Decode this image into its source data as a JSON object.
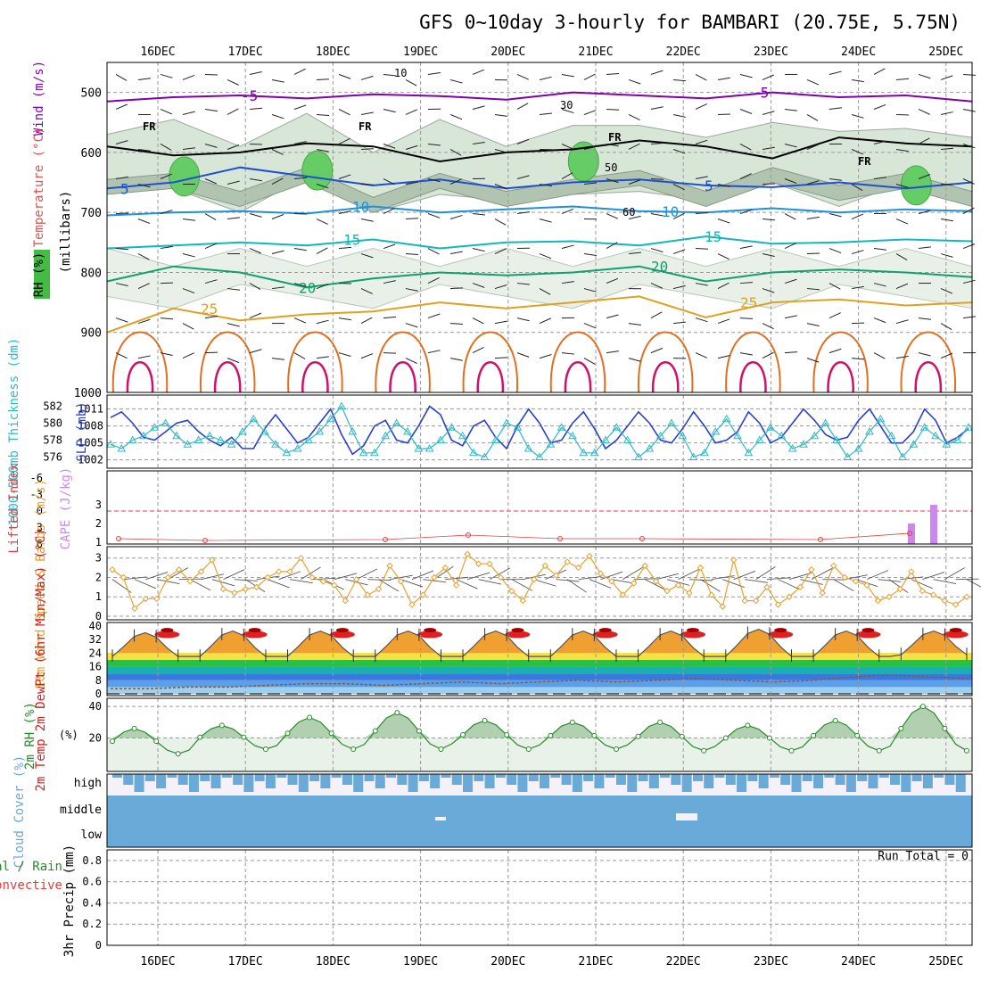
{
  "chart_data": [
    {
      "panel": "upper-air",
      "type": "contour",
      "title": "GFS 0~10day 3-hourly for BAMBARI (20.75E, 5.75N)",
      "dates": [
        "16DEC",
        "17DEC",
        "18DEC",
        "19DEC",
        "20DEC",
        "21DEC",
        "22DEC",
        "23DEC",
        "24DEC",
        "25DEC"
      ],
      "ylabel": "(millibars)",
      "legend_labels": [
        "Wind (m/s)",
        "Temperature (°C)",
        "RH (%)"
      ],
      "pressure_ticks": [
        500,
        600,
        700,
        800,
        900,
        1000
      ],
      "ylim": [
        450,
        1000
      ],
      "freezing_label": "FR",
      "temperature_isotherms": [
        {
          "label": "-5",
          "color": "#8000b0",
          "levels": [
            515,
            508,
            505,
            510,
            503,
            506,
            512,
            500,
            505,
            510,
            500,
            508,
            505,
            515
          ]
        },
        {
          "label": "5",
          "color": "#1e50d0",
          "levels": [
            660,
            650,
            625,
            640,
            655,
            645,
            660,
            650,
            645,
            655,
            658,
            650,
            660,
            650
          ]
        },
        {
          "label": "10",
          "color": "#1e90e0",
          "levels": [
            705,
            700,
            698,
            702,
            690,
            700,
            695,
            690,
            698,
            700,
            693,
            700,
            695,
            698
          ]
        },
        {
          "label": "15",
          "color": "#10b8b8",
          "levels": [
            760,
            755,
            750,
            755,
            745,
            760,
            750,
            748,
            755,
            740,
            752,
            750,
            745,
            748
          ]
        },
        {
          "label": "20",
          "color": "#10a070",
          "levels": [
            815,
            790,
            800,
            825,
            810,
            800,
            805,
            800,
            790,
            815,
            800,
            795,
            800,
            808
          ]
        },
        {
          "label": "25",
          "color": "#e0a020",
          "levels": [
            900,
            860,
            880,
            870,
            865,
            850,
            860,
            850,
            840,
            875,
            850,
            845,
            855,
            850
          ]
        }
      ],
      "rh_contour_labels": [
        "10",
        "30",
        "50",
        "60"
      ]
    },
    {
      "panel": "thickness-slp",
      "type": "line",
      "ylabel_left": "1000-500mb Thickness (dm)",
      "ylabel_right": "SLP (mb)",
      "thickness_ticks": [
        576,
        578,
        580,
        582
      ],
      "slp_ticks": [
        1002,
        1005,
        1008,
        1011
      ],
      "slp_mb": [
        1009.5,
        1010.5,
        1008.5,
        1006,
        1005.5,
        1007,
        1008.5,
        1009,
        1007,
        1005.5,
        1004.5,
        1006,
        1004,
        1004,
        1007.5,
        1010,
        1007.5,
        1005,
        1006,
        1008.5,
        1011,
        1006.5,
        1003,
        1004.5,
        1008,
        1009,
        1005.5,
        1005,
        1008,
        1011.5,
        1010,
        1005.5,
        1004.5,
        1008,
        1009,
        1006,
        1004,
        1008,
        1011,
        1008.5,
        1005,
        1005.5,
        1008.5,
        1010.5,
        1007.5,
        1004,
        1005.5,
        1008,
        1010.5,
        1008.5,
        1005.5,
        1005,
        1007.5,
        1010.5,
        1008,
        1005,
        1005.5,
        1007,
        1010.5,
        1008.5,
        1005,
        1006,
        1008.5,
        1011,
        1009,
        1006.5,
        1005.5,
        1006,
        1009,
        1011,
        1008,
        1005,
        1005,
        1007,
        1011,
        1009,
        1005,
        1006,
        1007.5
      ],
      "thickness_dm": [
        577.5,
        577,
        578,
        578.5,
        579.5,
        580,
        578.5,
        577.5,
        578,
        578.5,
        578,
        577.5,
        579,
        580.5,
        579,
        577.5,
        576.5,
        577,
        578,
        579,
        580.5,
        582,
        579,
        576.5,
        576.5,
        578.5,
        580,
        579,
        577,
        577,
        578,
        579.5,
        578.5,
        576.5,
        576,
        578,
        580,
        579.5,
        577,
        576,
        577.5,
        579.5,
        578.5,
        576.5,
        576.5,
        578,
        579.5,
        578,
        576,
        577,
        578.5,
        580,
        578.5,
        576,
        576.5,
        579,
        580.5,
        578.5,
        576.5,
        578,
        579.5,
        578.5,
        577,
        577.5,
        578.5,
        580,
        578,
        576,
        577,
        579,
        580.5,
        578.5,
        576,
        577.5,
        579.5,
        578.5,
        577.5,
        578,
        579.5
      ]
    },
    {
      "panel": "stability",
      "type": "bar",
      "ylabel_left": "Lifted Index",
      "ylabel_right": "CAPE (J/kg)",
      "li_ticks": [
        "-6",
        "-3",
        "0",
        "3",
        "6"
      ],
      "cape_ticks": [
        1,
        2,
        3
      ],
      "cape_bars": [
        {
          "date": "24DEC",
          "time": "15z",
          "value": 2
        },
        {
          "date": "24DEC",
          "time": "21z",
          "value": 3
        }
      ],
      "lifted_index_note": "near +6 throughout"
    },
    {
      "panel": "wind10m",
      "type": "line",
      "ylabel": "10m Wind Speed & Barbs (m/s)",
      "ticks": [
        0,
        1,
        2,
        3
      ],
      "speed_ms": [
        2.4,
        2,
        0.4,
        0.9,
        0.9,
        2,
        2.4,
        1.8,
        2.3,
        2.9,
        1.4,
        1.2,
        1.4,
        1.5,
        2,
        2.3,
        2.3,
        3,
        2,
        1.8,
        1.6,
        0.8,
        1.9,
        1.1,
        1.4,
        2.6,
        1.8,
        0.6,
        1.1,
        2,
        2.5,
        1.6,
        3.2,
        2.7,
        2.7,
        2,
        1.3,
        0.8,
        1.9,
        2.6,
        2.1,
        2.8,
        2.5,
        3.1,
        2.2,
        1.8,
        1.1,
        1.7,
        2.6,
        1.8,
        1.3,
        1.6,
        1.2,
        2.5,
        1.1,
        0.5,
        2.9,
        0.8,
        0.8,
        1.5,
        0.6,
        1,
        1.5,
        2.4,
        1.2,
        2.6,
        2,
        1.8,
        1.6,
        0.8,
        1,
        1.4,
        2.3,
        1.3,
        1.1,
        0.8,
        0.6,
        1
      ]
    },
    {
      "panel": "temperature2m",
      "type": "area",
      "ylabel": "2m Temp 2m DewPt (6hr Min/Max) (°C)",
      "ticks": [
        0,
        8,
        16,
        24,
        32,
        40
      ],
      "daily_max_c": [
        36,
        37,
        37,
        37,
        37,
        37,
        37,
        38,
        37,
        37
      ],
      "daily_min_c": [
        22,
        22,
        22,
        22,
        22,
        22,
        22,
        22,
        22,
        23
      ],
      "dewpoint_c": [
        3,
        3,
        4,
        4,
        5,
        6,
        6,
        5,
        6,
        7,
        6,
        7,
        8,
        7,
        8,
        9,
        8,
        7,
        8,
        10,
        11,
        10,
        9
      ]
    },
    {
      "panel": "rh2m",
      "type": "area",
      "ylabel": "2m RH (%)",
      "ticks": [
        20,
        40
      ],
      "daily_max_pct": [
        26,
        28,
        33,
        36,
        31,
        30,
        30,
        28,
        31,
        40
      ],
      "daily_min_pct": [
        10,
        13,
        13,
        13,
        13,
        13,
        12,
        12,
        12,
        12
      ]
    },
    {
      "panel": "cloud",
      "type": "area",
      "ylabel": "Cloud Cover (%)",
      "levels": [
        "high",
        "middle",
        "low"
      ],
      "note": "middle and low layers overcast throughout; high cloud broken"
    },
    {
      "panel": "precip",
      "type": "bar",
      "ylabel": "3hr Precip (mm)",
      "legend": [
        "Total / Rain",
        "Convective"
      ],
      "ticks": [
        0,
        0.2,
        0.4,
        0.6,
        0.8
      ],
      "run_total_label": "Run Total = 0",
      "values_mm": []
    }
  ]
}
